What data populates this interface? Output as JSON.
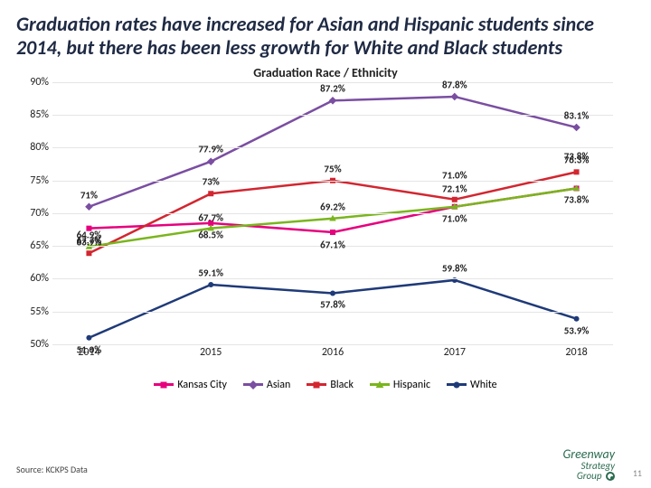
{
  "title": "Graduation rates have increased for Asian and Hispanic students since 2014, but there has been less growth for White and Black students",
  "chart_title": "Graduation Race / Ethnicity",
  "chart": {
    "type": "line",
    "background_color": "#ffffff",
    "grid_color": "#e5e5e5",
    "ylim": [
      50,
      90
    ],
    "ytick_step": 5,
    "yticks": [
      "50%",
      "55%",
      "60%",
      "65%",
      "70%",
      "75%",
      "80%",
      "85%",
      "90%"
    ],
    "categories": [
      "2014",
      "2015",
      "2016",
      "2017",
      "2018"
    ],
    "line_width": 2.5,
    "marker_size": 6,
    "label_fontsize": 11,
    "axis_fontsize": 12,
    "series": [
      {
        "name": "Kansas City",
        "color": "#e6007e",
        "marker": "square",
        "values": [
          67.7,
          68.5,
          67.1,
          71.0,
          73.8
        ],
        "labels": [
          "67.7%",
          "68.5%",
          "67.1%",
          "71.0%",
          "73.8%"
        ],
        "label_dy": [
          13,
          13,
          14,
          13,
          13
        ]
      },
      {
        "name": "Asian",
        "color": "#7a4ea1",
        "marker": "diamond",
        "values": [
          71.0,
          77.9,
          87.2,
          87.8,
          83.1
        ],
        "labels": [
          "71%",
          "77.9%",
          "87.2%",
          "87.8%",
          "83.1%"
        ],
        "label_dy": [
          -13,
          -14,
          -13,
          -13,
          -13
        ]
      },
      {
        "name": "Black",
        "color": "#d22630",
        "marker": "square",
        "values": [
          63.9,
          73.0,
          75.0,
          72.1,
          76.3
        ],
        "labels": [
          "63.9%",
          "73%",
          "75%",
          "72.1%",
          "76.3%"
        ],
        "label_dy": [
          -12,
          -13,
          -13,
          -12,
          -13
        ]
      },
      {
        "name": "Hispanic",
        "color": "#7ab51d",
        "marker": "triangle",
        "values": [
          64.9,
          67.7,
          69.2,
          71.0,
          73.8
        ],
        "labels": [
          "64.9%",
          "67.7%",
          "69.2%",
          "71.0%",
          "73.8%"
        ],
        "label_dy": [
          -13,
          -12,
          -13,
          -35,
          -35
        ]
      },
      {
        "name": "White",
        "color": "#1f3a78",
        "marker": "circle",
        "values": [
          51.0,
          59.1,
          57.8,
          59.8,
          53.9
        ],
        "labels": [
          "51.0%",
          "59.1%",
          "57.8%",
          "59.8%",
          "53.9%"
        ],
        "label_dy": [
          13,
          -13,
          13,
          -13,
          13
        ]
      }
    ]
  },
  "legend": [
    "Kansas City",
    "Asian",
    "Black",
    "Hispanic",
    "White"
  ],
  "source": "Source: KCKPS Data",
  "logo_line1": "Greenway",
  "logo_line2": "Strategy",
  "logo_line3": "Group",
  "page_number": "11"
}
